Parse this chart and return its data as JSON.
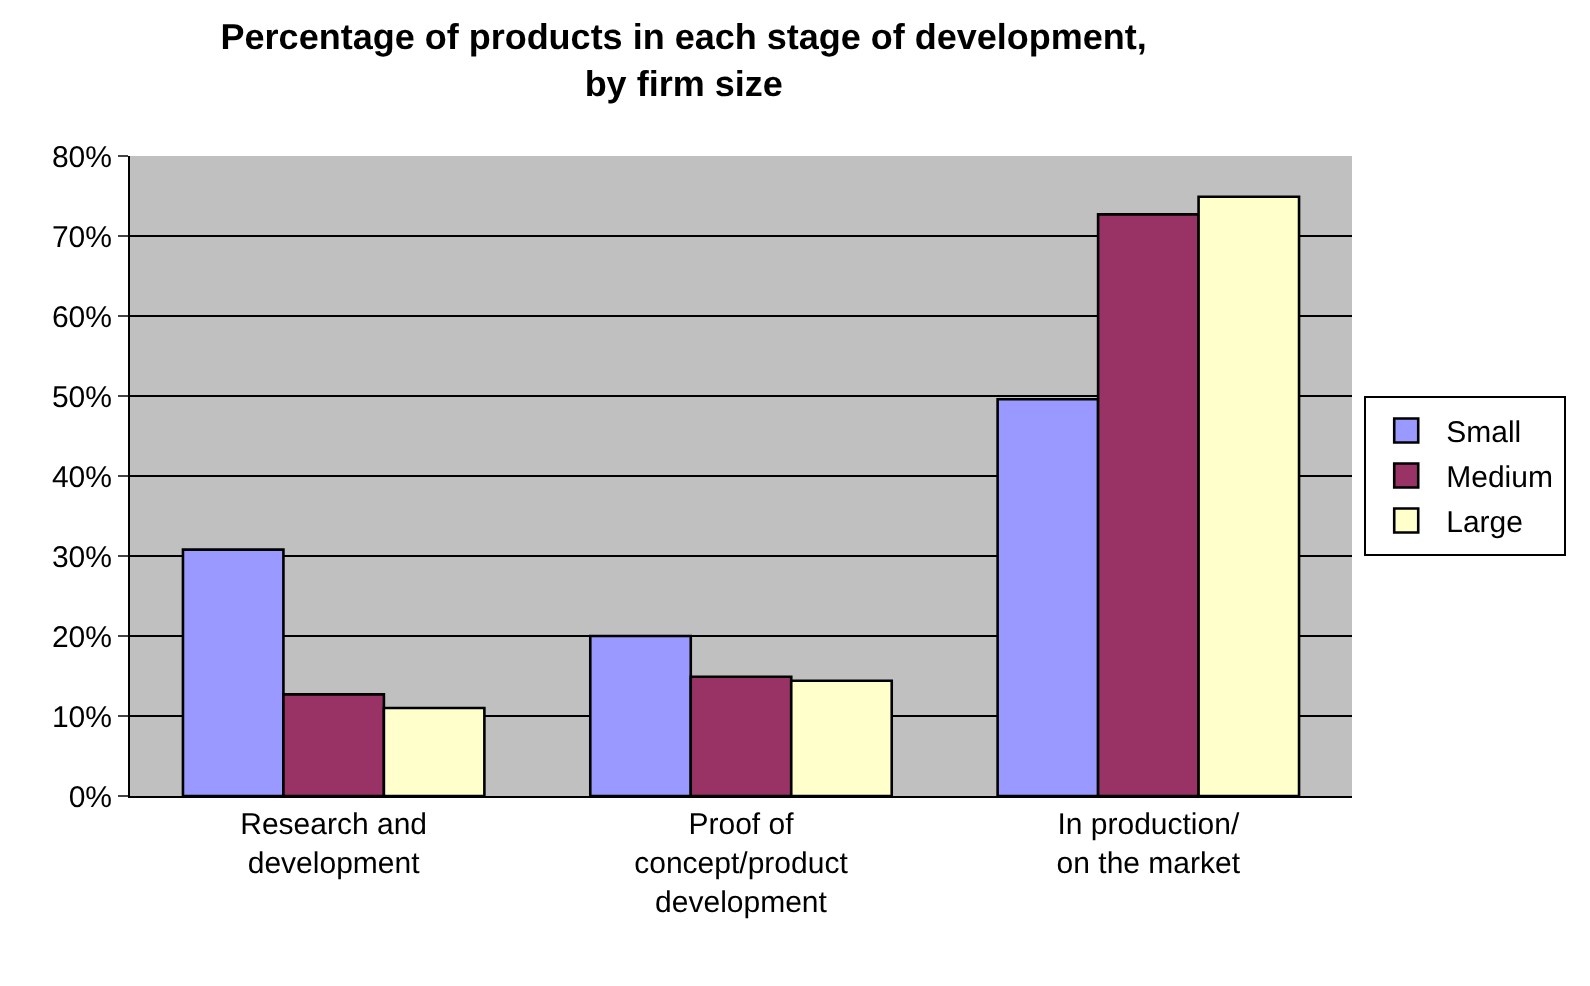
{
  "chart_data": {
    "type": "bar",
    "title": "Percentage of products in each stage of development,\nby firm size",
    "categories": [
      "Research and\ndevelopment",
      "Proof of\nconcept/product\ndevelopment",
      "In production/\non the market"
    ],
    "series": [
      {
        "name": "Small",
        "color": "#9999ff",
        "values": [
          30.8,
          20.0,
          49.6
        ]
      },
      {
        "name": "Medium",
        "color": "#993366",
        "values": [
          12.7,
          14.9,
          72.7
        ]
      },
      {
        "name": "Large",
        "color": "#ffffcc",
        "values": [
          11.0,
          14.4,
          74.9
        ]
      }
    ],
    "ylim": [
      0,
      80
    ],
    "yticks": [
      {
        "value": 0,
        "label": "0%"
      },
      {
        "value": 10,
        "label": "10%"
      },
      {
        "value": 20,
        "label": "20%"
      },
      {
        "value": 30,
        "label": "30%"
      },
      {
        "value": 40,
        "label": "40%"
      },
      {
        "value": 50,
        "label": "50%"
      },
      {
        "value": 60,
        "label": "60%"
      },
      {
        "value": 70,
        "label": "70%"
      },
      {
        "value": 80,
        "label": "80%"
      }
    ],
    "grid": "y",
    "legend": "right"
  }
}
